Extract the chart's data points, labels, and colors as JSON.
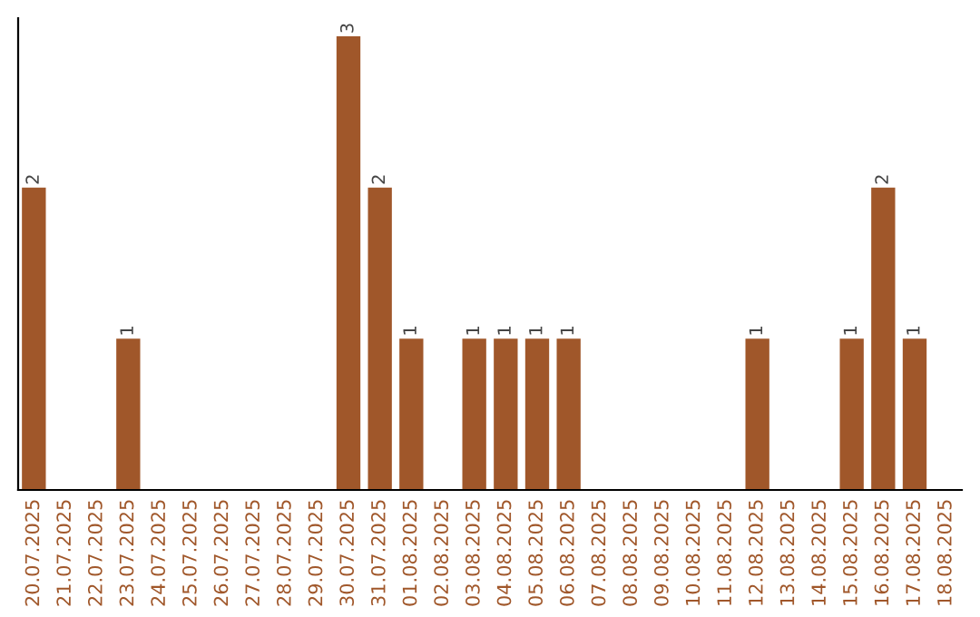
{
  "chart_data": {
    "type": "bar",
    "categories": [
      "20.07.2025",
      "21.07.2025",
      "22.07.2025",
      "23.07.2025",
      "24.07.2025",
      "25.07.2025",
      "26.07.2025",
      "27.07.2025",
      "28.07.2025",
      "29.07.2025",
      "30.07.2025",
      "31.07.2025",
      "01.08.2025",
      "02.08.2025",
      "03.08.2025",
      "04.08.2025",
      "05.08.2025",
      "06.08.2025",
      "07.08.2025",
      "08.08.2025",
      "09.08.2025",
      "10.08.2025",
      "11.08.2025",
      "12.08.2025",
      "13.08.2025",
      "14.08.2025",
      "15.08.2025",
      "16.08.2025",
      "17.08.2025",
      "18.08.2025"
    ],
    "values": [
      2,
      0,
      0,
      1,
      0,
      0,
      0,
      0,
      0,
      0,
      3,
      2,
      1,
      0,
      1,
      1,
      1,
      1,
      0,
      0,
      0,
      0,
      0,
      1,
      0,
      0,
      1,
      2,
      1,
      0
    ],
    "value_labels": [
      "2",
      null,
      null,
      "1",
      null,
      null,
      null,
      null,
      null,
      null,
      "3",
      "2",
      "1",
      null,
      "1",
      "1",
      "1",
      "1",
      null,
      null,
      null,
      null,
      null,
      "1",
      null,
      null,
      "1",
      "2",
      "1",
      null
    ],
    "color": "#a0572a",
    "ylim": [
      0,
      3.12
    ],
    "tick_labels": "x",
    "grid": false,
    "legend": false
  }
}
